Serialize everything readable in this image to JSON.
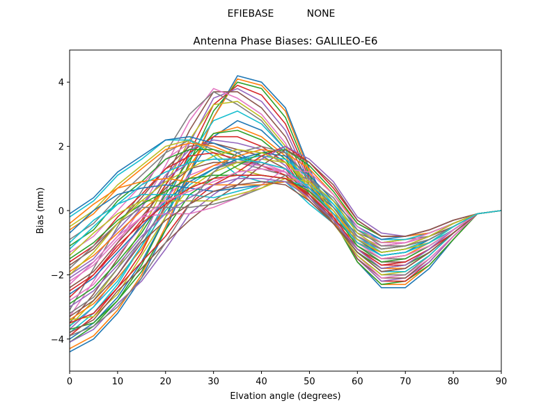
{
  "figure": {
    "suptitle_left": "EFIEBASE",
    "suptitle_right": "NONE"
  },
  "chart_data": {
    "type": "line",
    "title": "Antenna Phase Biases: GALILEO-E6",
    "xlabel": "Elvation angle (degrees)",
    "ylabel": "Bias (mm)",
    "xlim": [
      0,
      90
    ],
    "ylim": [
      -5,
      5
    ],
    "xticks": [
      0,
      10,
      20,
      30,
      40,
      50,
      60,
      70,
      80,
      90
    ],
    "yticks": [
      -4,
      -2,
      0,
      2,
      4
    ],
    "xtick_labels": [
      "0",
      "10",
      "20",
      "30",
      "40",
      "50",
      "60",
      "70",
      "80",
      "90"
    ],
    "ytick_labels": [
      "−4",
      "−2",
      "0",
      "2",
      "4"
    ],
    "grid": false,
    "legend": "none",
    "palette": [
      "#1f77b4",
      "#ff7f0e",
      "#2ca02c",
      "#d62728",
      "#9467bd",
      "#8c564b",
      "#e377c2",
      "#7f7f7f",
      "#bcbd22",
      "#17becf"
    ],
    "x": [
      0,
      5,
      10,
      15,
      20,
      25,
      30,
      35,
      40,
      45,
      50,
      55,
      60,
      65,
      70,
      75,
      80,
      85,
      90
    ],
    "series": [
      {
        "values": [
          -4.4,
          -4.0,
          -3.2,
          -2.1,
          -0.6,
          1.1,
          2.9,
          4.2,
          4.0,
          3.2,
          1.3,
          -0.2,
          -1.6,
          -2.4,
          -2.4,
          -1.8,
          -0.9,
          -0.1,
          0.0
        ]
      },
      {
        "values": [
          -4.3,
          -3.9,
          -3.1,
          -2.0,
          -0.5,
          1.2,
          2.9,
          4.1,
          3.9,
          3.1,
          1.2,
          -0.2,
          -1.6,
          -2.3,
          -2.3,
          -1.7,
          -0.9,
          -0.1,
          0.0
        ]
      },
      {
        "values": [
          -4.1,
          -3.6,
          -2.8,
          -1.7,
          -0.2,
          1.5,
          3.1,
          4.0,
          3.8,
          2.9,
          1.1,
          -0.3,
          -1.6,
          -2.3,
          -2.2,
          -1.7,
          -0.9,
          -0.1,
          0.0
        ]
      },
      {
        "values": [
          -3.9,
          -3.3,
          -2.4,
          -1.3,
          0.2,
          1.8,
          3.3,
          3.9,
          3.6,
          2.7,
          1.0,
          -0.3,
          -1.5,
          -2.2,
          -2.2,
          -1.6,
          -0.8,
          -0.1,
          0.0
        ]
      },
      {
        "values": [
          -3.7,
          -3.0,
          -2.0,
          -0.9,
          0.6,
          2.1,
          3.5,
          3.8,
          3.4,
          2.5,
          0.9,
          -0.3,
          -1.5,
          -2.2,
          -2.1,
          -1.6,
          -0.8,
          -0.1,
          0.0
        ]
      },
      {
        "values": [
          -3.5,
          -2.6,
          -1.5,
          -0.4,
          1.0,
          2.5,
          3.7,
          3.7,
          3.2,
          2.3,
          0.8,
          -0.3,
          -1.5,
          -2.1,
          -2.1,
          -1.5,
          -0.8,
          -0.1,
          0.0
        ]
      },
      {
        "values": [
          -3.3,
          -2.2,
          -1.0,
          0.1,
          1.4,
          2.8,
          3.8,
          3.5,
          3.0,
          2.1,
          0.7,
          -0.4,
          -1.4,
          -2.1,
          -2.0,
          -1.5,
          -0.8,
          -0.1,
          0.0
        ]
      },
      {
        "values": [
          -3.1,
          -1.8,
          -0.5,
          0.6,
          1.8,
          3.0,
          3.7,
          3.3,
          2.8,
          1.9,
          0.6,
          -0.4,
          -1.4,
          -2.0,
          -2.0,
          -1.4,
          -0.7,
          -0.1,
          0.0
        ]
      },
      {
        "values": [
          -3.6,
          -2.8,
          -1.8,
          -0.6,
          0.8,
          2.2,
          3.3,
          3.4,
          2.9,
          2.0,
          0.6,
          -0.4,
          -1.4,
          -2.0,
          -1.9,
          -1.4,
          -0.7,
          -0.1,
          0.0
        ]
      },
      {
        "values": [
          -3.8,
          -3.2,
          -2.3,
          -1.1,
          0.3,
          1.7,
          2.8,
          3.1,
          2.7,
          1.9,
          0.5,
          -0.4,
          -1.3,
          -1.9,
          -1.9,
          -1.4,
          -0.7,
          -0.1,
          0.0
        ]
      },
      {
        "values": [
          -4.0,
          -3.5,
          -2.7,
          -1.6,
          -0.2,
          1.2,
          2.3,
          2.8,
          2.5,
          1.8,
          0.5,
          -0.4,
          -1.3,
          -1.9,
          -1.8,
          -1.3,
          -0.7,
          -0.1,
          0.0
        ]
      },
      {
        "values": [
          -3.4,
          -2.9,
          -2.1,
          -1.2,
          0.1,
          1.4,
          2.4,
          2.6,
          2.3,
          1.7,
          0.5,
          -0.4,
          -1.3,
          -1.8,
          -1.8,
          -1.3,
          -0.7,
          -0.1,
          0.0
        ]
      },
      {
        "values": [
          -2.9,
          -2.4,
          -1.6,
          -0.7,
          0.5,
          1.6,
          2.4,
          2.5,
          2.2,
          1.6,
          0.5,
          -0.4,
          -1.3,
          -1.8,
          -1.7,
          -1.3,
          -0.7,
          -0.1,
          0.0
        ]
      },
      {
        "values": [
          -2.5,
          -2.0,
          -1.2,
          -0.3,
          0.8,
          1.8,
          2.3,
          2.3,
          2.0,
          1.5,
          0.4,
          -0.4,
          -1.2,
          -1.7,
          -1.7,
          -1.2,
          -0.7,
          -0.1,
          0.0
        ]
      },
      {
        "values": [
          -2.1,
          -1.6,
          -0.8,
          0.1,
          1.1,
          1.9,
          2.2,
          2.1,
          1.9,
          1.4,
          0.4,
          -0.4,
          -1.2,
          -1.7,
          -1.6,
          -1.2,
          -0.6,
          -0.1,
          0.0
        ]
      },
      {
        "values": [
          -1.7,
          -1.2,
          -0.4,
          0.4,
          1.3,
          2.0,
          2.1,
          1.9,
          1.7,
          1.3,
          0.4,
          -0.4,
          -1.2,
          -1.6,
          -1.6,
          -1.2,
          -0.6,
          -0.1,
          0.0
        ]
      },
      {
        "values": [
          -1.3,
          -0.8,
          0.0,
          0.8,
          1.6,
          2.1,
          2.0,
          1.7,
          1.5,
          1.2,
          0.3,
          -0.4,
          -1.1,
          -1.6,
          -1.5,
          -1.1,
          -0.6,
          -0.1,
          0.0
        ]
      },
      {
        "values": [
          -0.9,
          -0.4,
          0.4,
          1.1,
          1.8,
          2.2,
          1.9,
          1.5,
          1.3,
          1.1,
          0.3,
          -0.4,
          -1.1,
          -1.5,
          -1.5,
          -1.1,
          -0.6,
          -0.1,
          0.0
        ]
      },
      {
        "values": [
          -0.5,
          0.0,
          0.8,
          1.4,
          2.0,
          2.2,
          1.8,
          1.3,
          1.1,
          1.0,
          0.3,
          -0.4,
          -1.0,
          -1.5,
          -1.4,
          -1.1,
          -0.6,
          -0.1,
          0.0
        ]
      },
      {
        "values": [
          -0.2,
          0.3,
          1.1,
          1.6,
          2.2,
          2.2,
          1.7,
          1.1,
          0.9,
          0.9,
          0.2,
          -0.4,
          -1.0,
          -1.4,
          -1.3,
          -1.0,
          -0.6,
          -0.1,
          0.0
        ]
      },
      {
        "values": [
          -0.1,
          0.4,
          1.2,
          1.7,
          2.2,
          2.3,
          2.1,
          1.8,
          1.4,
          1.1,
          0.3,
          -0.4,
          -1.0,
          -1.4,
          -1.3,
          -1.0,
          -0.5,
          -0.1,
          0.0
        ]
      },
      {
        "values": [
          -0.6,
          -0.1,
          0.7,
          1.3,
          1.9,
          2.1,
          2.0,
          1.7,
          1.4,
          1.1,
          0.3,
          -0.4,
          -1.0,
          -1.3,
          -1.2,
          -1.0,
          -0.5,
          -0.1,
          0.0
        ]
      },
      {
        "values": [
          -1.1,
          -0.6,
          0.3,
          0.9,
          1.6,
          1.9,
          1.9,
          1.7,
          1.4,
          1.1,
          0.4,
          -0.3,
          -0.9,
          -1.3,
          -1.2,
          -0.9,
          -0.5,
          -0.1,
          0.0
        ]
      },
      {
        "values": [
          -1.6,
          -1.1,
          -0.2,
          0.5,
          1.3,
          1.7,
          1.8,
          1.6,
          1.4,
          1.1,
          0.4,
          -0.3,
          -0.9,
          -1.2,
          -1.1,
          -0.9,
          -0.5,
          -0.1,
          0.0
        ]
      },
      {
        "values": [
          -2.0,
          -1.5,
          -0.6,
          0.2,
          1.0,
          1.5,
          1.6,
          1.6,
          1.4,
          1.2,
          0.5,
          -0.3,
          -0.9,
          -1.2,
          -1.1,
          -0.9,
          -0.5,
          -0.1,
          0.0
        ]
      },
      {
        "values": [
          -2.4,
          -1.9,
          -1.0,
          -0.2,
          0.7,
          1.3,
          1.5,
          1.5,
          1.4,
          1.2,
          0.5,
          -0.3,
          -0.8,
          -1.1,
          -1.0,
          -0.8,
          -0.5,
          -0.1,
          0.0
        ]
      },
      {
        "values": [
          -2.8,
          -2.3,
          -1.4,
          -0.5,
          0.4,
          1.1,
          1.4,
          1.5,
          1.4,
          1.2,
          0.6,
          -0.2,
          -0.8,
          -1.1,
          -1.0,
          -0.8,
          -0.4,
          -0.1,
          0.0
        ]
      },
      {
        "values": [
          -3.2,
          -2.7,
          -1.8,
          -0.9,
          0.1,
          0.9,
          1.3,
          1.5,
          1.5,
          1.3,
          0.7,
          -0.1,
          -0.7,
          -1.0,
          -0.9,
          -0.8,
          -0.4,
          -0.1,
          0.0
        ]
      },
      {
        "values": [
          -3.4,
          -3.3,
          -2.6,
          -1.4,
          -0.2,
          0.7,
          1.2,
          1.5,
          1.6,
          1.5,
          0.9,
          0.1,
          -0.6,
          -1.0,
          -0.9,
          -0.7,
          -0.4,
          -0.1,
          0.0
        ]
      },
      {
        "values": [
          -3.6,
          -3.0,
          -2.2,
          -1.1,
          0.0,
          0.8,
          1.3,
          1.6,
          1.7,
          1.6,
          1.0,
          0.2,
          -0.6,
          -0.9,
          -0.9,
          -0.7,
          -0.4,
          -0.1,
          0.0
        ]
      },
      {
        "values": [
          -2.6,
          -2.1,
          -1.3,
          -0.5,
          0.3,
          0.9,
          1.3,
          1.6,
          1.8,
          1.7,
          1.1,
          0.3,
          -0.5,
          -0.9,
          -0.8,
          -0.7,
          -0.4,
          -0.1,
          0.0
        ]
      },
      {
        "values": [
          -1.9,
          -1.4,
          -0.7,
          0.0,
          0.6,
          1.0,
          1.4,
          1.7,
          1.9,
          1.8,
          1.3,
          0.5,
          -0.4,
          -0.8,
          -0.8,
          -0.7,
          -0.4,
          -0.1,
          0.0
        ]
      },
      {
        "values": [
          -3.7,
          -3.5,
          -2.8,
          -1.9,
          -0.6,
          0.5,
          1.0,
          1.4,
          1.8,
          1.9,
          1.4,
          0.6,
          -0.4,
          -0.8,
          -0.8,
          -0.6,
          -0.3,
          -0.1,
          0.0
        ]
      },
      {
        "values": [
          -3.5,
          -3.2,
          -2.4,
          -1.6,
          -0.8,
          0.2,
          0.8,
          1.2,
          1.7,
          2.0,
          1.5,
          0.7,
          -0.3,
          -0.8,
          -0.8,
          -0.6,
          -0.3,
          -0.1,
          0.0
        ]
      },
      {
        "values": [
          -4.1,
          -3.7,
          -2.9,
          -2.2,
          -1.2,
          -0.1,
          0.5,
          1.0,
          1.6,
          2.0,
          1.6,
          0.9,
          -0.2,
          -0.7,
          -0.8,
          -0.6,
          -0.3,
          -0.1,
          0.0
        ]
      },
      {
        "values": [
          -3.8,
          -3.4,
          -2.5,
          -1.8,
          -1.0,
          -0.3,
          0.3,
          0.8,
          1.4,
          1.9,
          1.5,
          0.8,
          -0.3,
          -0.8,
          -0.8,
          -0.6,
          -0.3,
          -0.1,
          0.0
        ]
      },
      {
        "values": [
          -2.3,
          -1.6,
          -0.8,
          -0.2,
          -0.1,
          -0.1,
          0.1,
          0.4,
          0.8,
          1.3,
          1.2,
          0.5,
          -0.5,
          -1.0,
          -1.0,
          -0.7,
          -0.4,
          -0.1,
          0.0
        ]
      },
      {
        "values": [
          -1.8,
          -1.1,
          -0.4,
          0.1,
          0.1,
          0.1,
          0.2,
          0.4,
          0.7,
          1.1,
          1.0,
          0.4,
          -0.6,
          -1.1,
          -1.1,
          -0.8,
          -0.4,
          -0.1,
          0.0
        ]
      },
      {
        "values": [
          -1.4,
          -0.7,
          -0.1,
          0.3,
          0.3,
          0.3,
          0.3,
          0.5,
          0.7,
          1.0,
          0.9,
          0.3,
          -0.7,
          -1.2,
          -1.1,
          -0.8,
          -0.4,
          -0.1,
          0.0
        ]
      },
      {
        "values": [
          -1.0,
          -0.3,
          0.2,
          0.5,
          0.5,
          0.5,
          0.4,
          0.6,
          0.8,
          0.9,
          0.8,
          0.2,
          -0.8,
          -1.3,
          -1.2,
          -0.9,
          -0.5,
          -0.1,
          0.0
        ]
      },
      {
        "values": [
          -0.7,
          0.0,
          0.5,
          0.7,
          0.8,
          0.7,
          0.6,
          0.7,
          0.8,
          0.9,
          0.7,
          0.1,
          -0.9,
          -1.4,
          -1.3,
          -0.9,
          -0.5,
          -0.1,
          0.0
        ]
      },
      {
        "values": [
          -0.4,
          0.2,
          0.7,
          0.9,
          1.0,
          0.9,
          0.8,
          0.8,
          0.8,
          0.9,
          0.6,
          0.0,
          -1.0,
          -1.5,
          -1.4,
          -1.0,
          -0.5,
          -0.1,
          0.0
        ]
      },
      {
        "values": [
          -1.5,
          -1.0,
          -0.3,
          0.2,
          0.6,
          1.0,
          1.1,
          1.1,
          1.1,
          1.0,
          0.6,
          -0.1,
          -1.1,
          -1.6,
          -1.5,
          -1.1,
          -0.6,
          -0.1,
          0.0
        ]
      },
      {
        "values": [
          -2.7,
          -2.0,
          -1.1,
          -0.4,
          0.2,
          0.7,
          1.0,
          1.1,
          1.1,
          1.0,
          0.5,
          -0.2,
          -1.2,
          -1.7,
          -1.6,
          -1.2,
          -0.6,
          -0.1,
          0.0
        ]
      },
      {
        "values": [
          -3.0,
          -2.5,
          -1.7,
          -0.8,
          -0.1,
          0.4,
          0.8,
          1.0,
          1.0,
          0.9,
          0.4,
          -0.3,
          -1.2,
          -1.8,
          -1.7,
          -1.2,
          -0.6,
          -0.1,
          0.0
        ]
      },
      {
        "values": [
          -3.3,
          -2.8,
          -2.0,
          -1.0,
          -0.3,
          0.2,
          0.6,
          0.8,
          0.9,
          0.8,
          0.3,
          -0.4,
          -1.3,
          -1.9,
          -1.8,
          -1.3,
          -0.7,
          -0.1,
          0.0
        ]
      },
      {
        "values": [
          -2.2,
          -1.7,
          -0.9,
          -0.2,
          0.3,
          0.6,
          0.9,
          1.2,
          1.3,
          1.2,
          0.7,
          -0.1,
          -1.0,
          -1.5,
          -1.4,
          -1.1,
          -0.6,
          -0.1,
          0.0
        ]
      },
      {
        "values": [
          -3.9,
          -3.6,
          -3.0,
          -2.1,
          -1.0,
          0.2,
          1.2,
          1.8,
          2.0,
          1.8,
          1.0,
          0.1,
          -0.8,
          -1.2,
          -1.1,
          -0.9,
          -0.5,
          -0.1,
          0.0
        ]
      },
      {
        "values": [
          -2.0,
          -1.3,
          -0.4,
          0.3,
          0.9,
          1.3,
          1.7,
          1.9,
          1.8,
          1.5,
          0.8,
          0.0,
          -0.9,
          -1.3,
          -1.2,
          -1.0,
          -0.5,
          -0.1,
          0.0
        ]
      },
      {
        "values": [
          -1.2,
          -0.5,
          0.2,
          0.8,
          1.2,
          1.5,
          1.6,
          1.6,
          1.5,
          1.3,
          0.7,
          -0.1,
          -1.0,
          -1.4,
          -1.3,
          -1.0,
          -0.5,
          -0.1,
          0.0
        ]
      }
    ]
  }
}
